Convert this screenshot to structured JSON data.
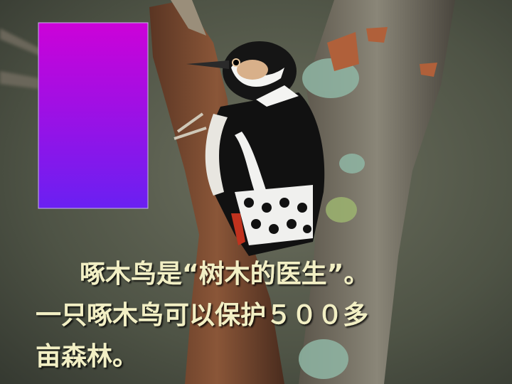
{
  "slide": {
    "text_lines": [
      "啄木鸟是“树木的医生”。",
      "一只啄木鸟可以保护５００多",
      "亩森林。"
    ]
  }
}
